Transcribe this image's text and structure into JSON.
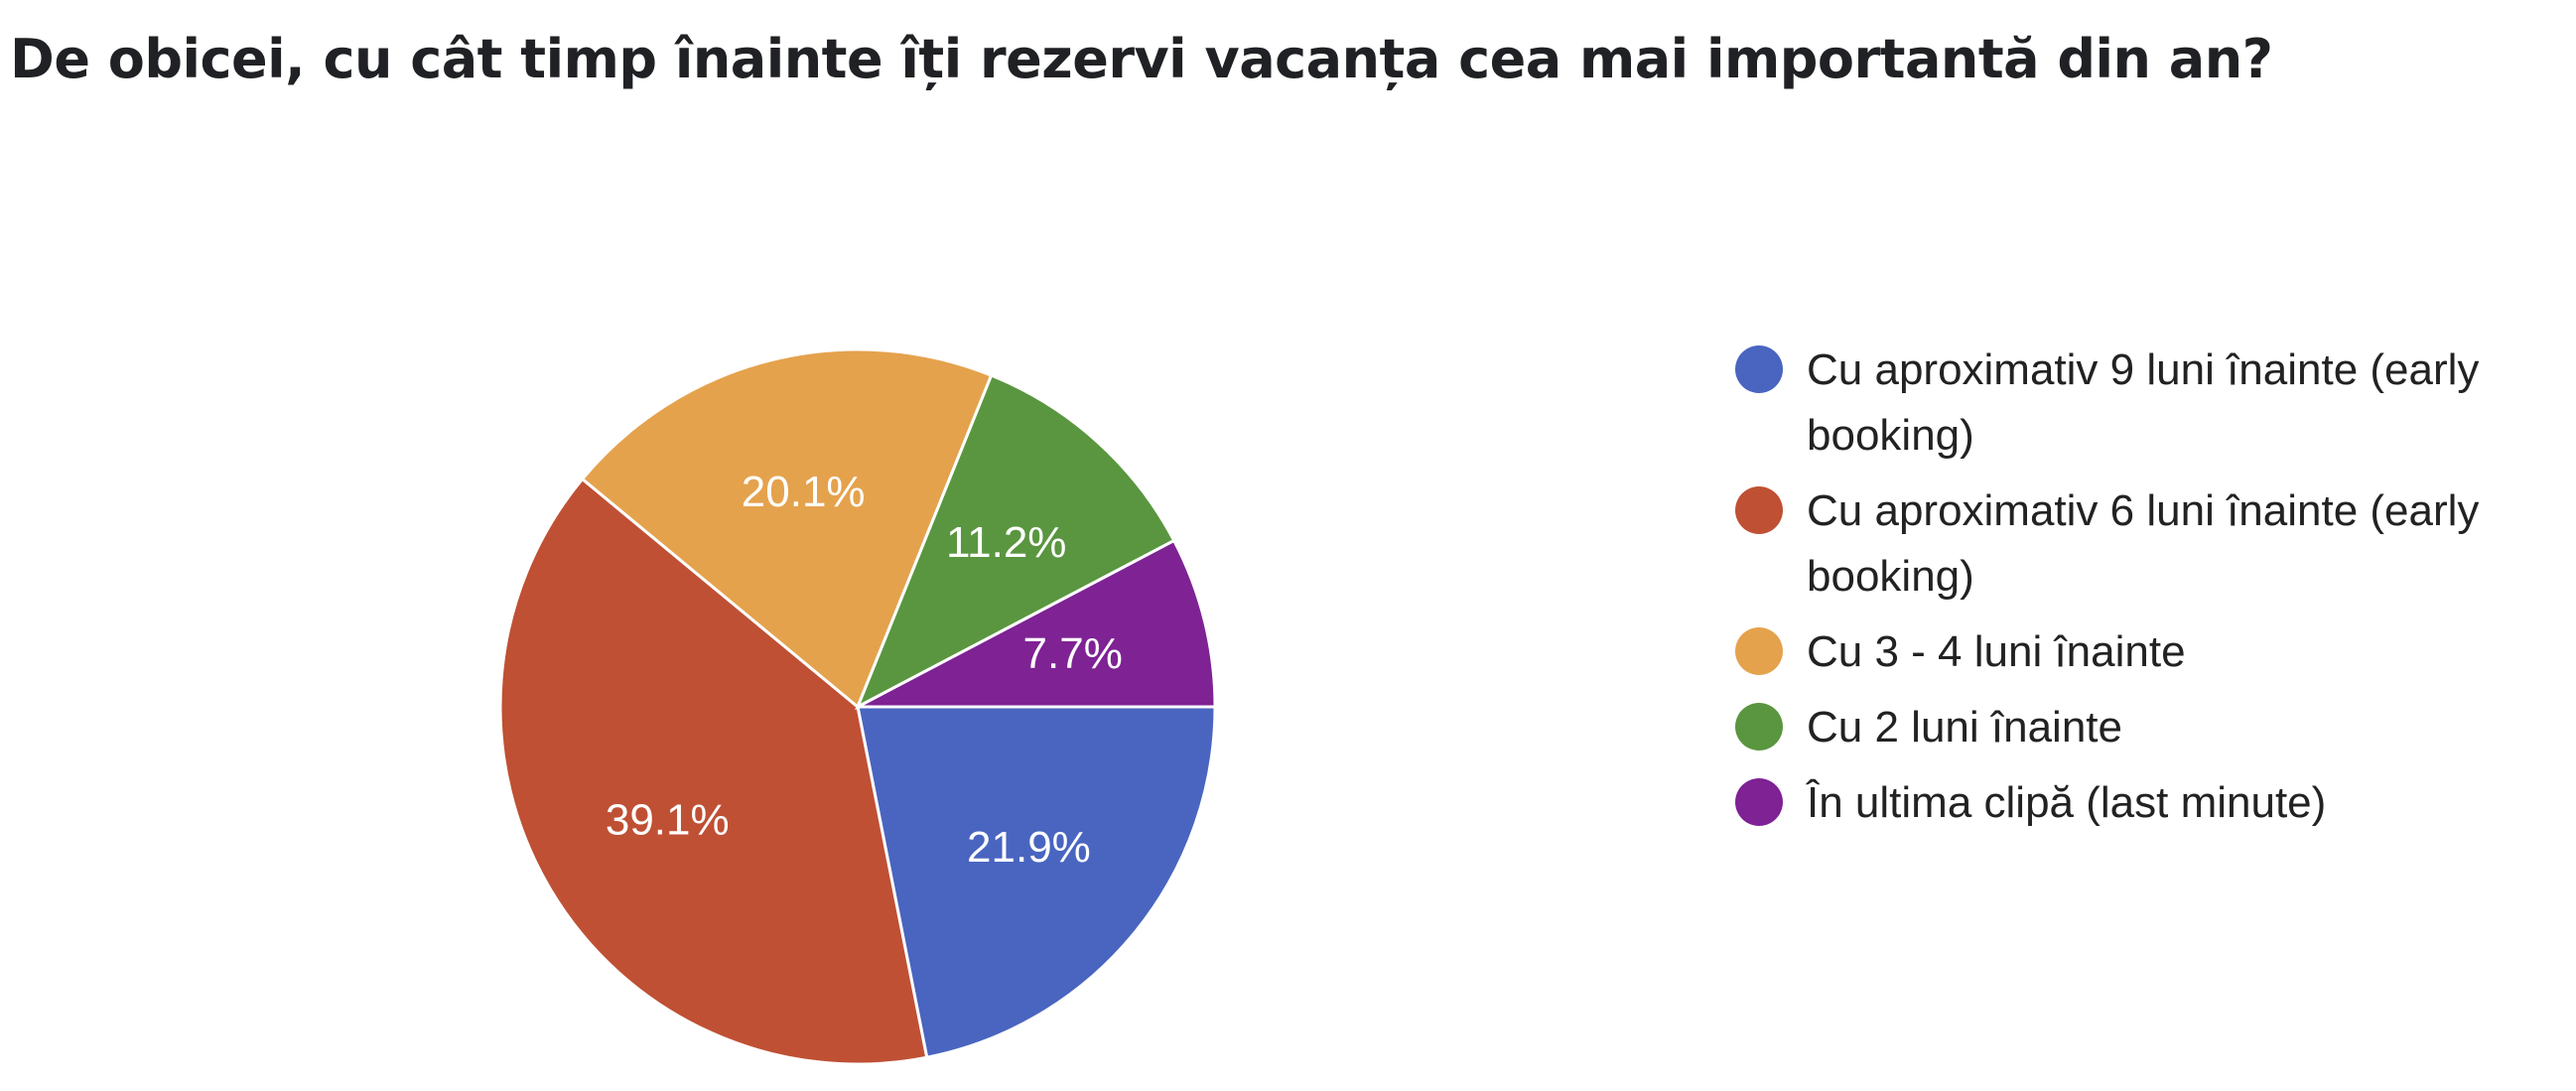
{
  "chart_data": {
    "type": "pie",
    "title": "De obicei, cu cât timp înainte îți rezervi vacanța cea mai importantă din an?",
    "legend_position": "right",
    "slices": [
      {
        "label": "Cu aproximativ 9 luni înainte (early booking)",
        "value": 21.9,
        "display": "21.9%",
        "color": "#4965c0"
      },
      {
        "label": "Cu aproximativ 6 luni înainte (early booking)",
        "value": 39.1,
        "display": "39.1%",
        "color": "#bf5034"
      },
      {
        "label": "Cu 3 - 4 luni înainte",
        "value": 20.1,
        "display": "20.1%",
        "color": "#e5a24d"
      },
      {
        "label": "Cu 2 luni înainte",
        "value": 11.2,
        "display": "11.2%",
        "color": "#5a9640"
      },
      {
        "label": "În ultima clipă (last minute)",
        "value": 7.7,
        "display": "7.7%",
        "color": "#7e2294"
      }
    ]
  }
}
